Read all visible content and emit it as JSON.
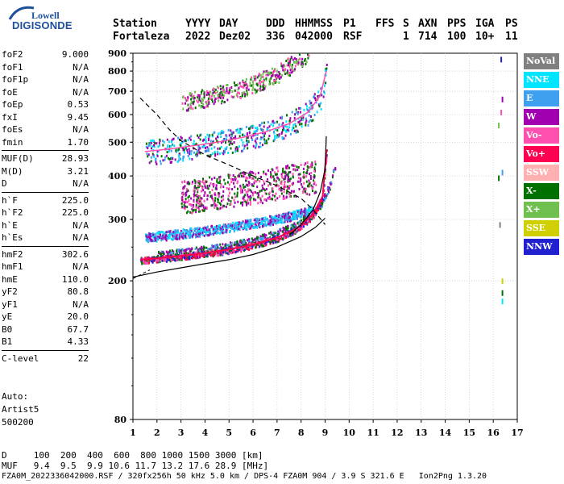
{
  "logo": {
    "top": "Lowell",
    "bottom": "DIGISONDE"
  },
  "header": {
    "labels": [
      "Station",
      "YYYY",
      "DAY",
      "DDD",
      "HHMMSS",
      "P1",
      "FFS",
      "S",
      "AXN",
      "PPS",
      "IGA",
      "PS"
    ],
    "values": [
      "Fortaleza",
      "2022",
      "Dez02",
      "336",
      "042000",
      "RSF",
      "1",
      "714",
      "100",
      "10+",
      "11"
    ]
  },
  "params": {
    "group1": [
      {
        "key": "foF2",
        "value": "9.000"
      },
      {
        "key": "foF1",
        "value": "N/A"
      },
      {
        "key": "foF1p",
        "value": "N/A"
      },
      {
        "key": "foE",
        "value": "N/A"
      },
      {
        "key": "foEp",
        "value": "0.53"
      },
      {
        "key": "fxI",
        "value": "9.45"
      },
      {
        "key": "foEs",
        "value": "N/A"
      },
      {
        "key": "fmin",
        "value": "1.70"
      }
    ],
    "group2": [
      {
        "key": "MUF(D)",
        "value": "28.93"
      },
      {
        "key": "M(D)",
        "value": "3.21"
      },
      {
        "key": "D",
        "value": "N/A"
      }
    ],
    "group3": [
      {
        "key": "h`F",
        "value": "225.0"
      },
      {
        "key": "h`F2",
        "value": "225.0"
      },
      {
        "key": "h`E",
        "value": "N/A"
      },
      {
        "key": "h`Es",
        "value": "N/A"
      }
    ],
    "group4": [
      {
        "key": "hmF2",
        "value": "302.6"
      },
      {
        "key": "hmF1",
        "value": "N/A"
      },
      {
        "key": "hmE",
        "value": "110.0"
      },
      {
        "key": "yF2",
        "value": "80.8"
      },
      {
        "key": "yF1",
        "value": "N/A"
      },
      {
        "key": "yE",
        "value": "20.0"
      },
      {
        "key": "B0",
        "value": "67.7"
      },
      {
        "key": "B1",
        "value": "4.33"
      }
    ],
    "group5": [
      {
        "key": "C-level",
        "value": "22"
      }
    ]
  },
  "auto": [
    "Auto:",
    "Artist5",
    "500200"
  ],
  "legend": [
    {
      "label": "NoVal",
      "color": "#808080"
    },
    {
      "label": "NNE",
      "color": "#00e5ff"
    },
    {
      "label": "E",
      "color": "#3fa0f0"
    },
    {
      "label": "W",
      "color": "#a000b0"
    },
    {
      "label": "Vo-",
      "color": "#ff50b0"
    },
    {
      "label": "Vo+",
      "color": "#ff0050"
    },
    {
      "label": "SSW",
      "color": "#ffb0b0"
    },
    {
      "label": "X-",
      "color": "#007000"
    },
    {
      "label": "X+",
      "color": "#70c050"
    },
    {
      "label": "SSE",
      "color": "#d0d000"
    },
    {
      "label": "NNW",
      "color": "#2020d0"
    }
  ],
  "bottom": {
    "d_row": "D     100  200  400  600  800 1000 1500 3000 [km]",
    "muf_row": "MUF   9.4  9.5  9.9 10.6 11.7 13.2 17.6 28.9 [MHz]",
    "file_row": "FZA0M_2022336042000.RSF / 320fx256h 50 kHz 5.0 km / DPS-4 FZA0M 904 / 3.9 S 321.6 E   Ion2Png 1.3.20"
  },
  "chart_data": {
    "type": "scatter",
    "xlim": [
      1,
      17
    ],
    "ylim": [
      80,
      900
    ],
    "y_scale": "log",
    "x_ticks": [
      "1",
      "2",
      "3",
      "4",
      "5",
      "6",
      "7",
      "8",
      "9",
      "10",
      "11",
      "12",
      "13",
      "14",
      "15",
      "16",
      "17"
    ],
    "y_ticks": [
      "80",
      "200",
      "300",
      "400",
      "500",
      "600",
      "700",
      "800",
      "900"
    ],
    "grid": true,
    "traces": {
      "o_trace_1": {
        "f": [
          1.3,
          2,
          3,
          4,
          5,
          6,
          7,
          7.8,
          8.5,
          8.9,
          9.05
        ],
        "h": [
          230,
          232,
          236,
          240,
          246,
          254,
          266,
          282,
          310,
          350,
          470
        ]
      },
      "x_trace_1": {
        "f": [
          2,
          3,
          4,
          5,
          6,
          7,
          8,
          8.8,
          9.2,
          9.4
        ],
        "h": [
          238,
          242,
          247,
          253,
          262,
          275,
          295,
          330,
          380,
          430
        ]
      },
      "o_trace_2": {
        "f": [
          1.5,
          2.5,
          3.5,
          4.5,
          5.5,
          6.5,
          7.5,
          8.3,
          8.8,
          9.05
        ],
        "h": [
          470,
          478,
          488,
          500,
          515,
          535,
          565,
          610,
          680,
          800
        ]
      },
      "o_trace_3": {
        "f": [
          3,
          4,
          5,
          6,
          7,
          7.6,
          8,
          8.3
        ],
        "h": [
          655,
          675,
          700,
          735,
          790,
          840,
          880,
          900
        ]
      },
      "w_band": {
        "f": [
          3,
          4,
          5,
          6,
          7,
          8,
          8.6
        ],
        "h": [
          350,
          360,
          368,
          375,
          385,
          395,
          405
        ]
      },
      "e_band": {
        "f": [
          1.5,
          2.5,
          3.5,
          4.5,
          5.5,
          6.5,
          7.5,
          8.5
        ],
        "h": [
          268,
          272,
          277,
          283,
          290,
          298,
          308,
          320
        ]
      },
      "profile_solid": {
        "f": [
          1,
          2,
          3,
          4,
          5,
          6,
          7,
          8,
          8.6,
          9
        ],
        "h": [
          205,
          212,
          218,
          224,
          230,
          238,
          250,
          268,
          285,
          302.6
        ]
      },
      "profile_upper": {
        "f": [
          7.5,
          8,
          8.5,
          8.8,
          9,
          9.05
        ],
        "h": [
          270,
          290,
          320,
          360,
          420,
          520
        ]
      },
      "muf_dashed": {
        "f": [
          1.3,
          2,
          2.5,
          3,
          4,
          5,
          6,
          7,
          8,
          8.5,
          9
        ],
        "h": [
          670,
          600,
          545,
          505,
          460,
          430,
          400,
          375,
          345,
          320,
          290
        ]
      },
      "profile_lower_dashed": {
        "f": [
          1,
          1.3,
          1.7
        ],
        "h": [
          203,
          208,
          215
        ]
      }
    },
    "side_markers": [
      {
        "f": 16.3,
        "h": 865,
        "series": "NNW"
      },
      {
        "f": 16.35,
        "h": 665,
        "series": "W"
      },
      {
        "f": 16.3,
        "h": 610,
        "series": "Vo-"
      },
      {
        "f": 16.2,
        "h": 560,
        "series": "X+"
      },
      {
        "f": 16.35,
        "h": 410,
        "series": "E"
      },
      {
        "f": 16.2,
        "h": 395,
        "series": "X-"
      },
      {
        "f": 16.25,
        "h": 290,
        "series": "NoVal"
      },
      {
        "f": 16.35,
        "h": 200,
        "series": "SSE"
      },
      {
        "f": 16.35,
        "h": 185,
        "series": "X-"
      },
      {
        "f": 16.35,
        "h": 175,
        "series": "NNE"
      }
    ]
  }
}
